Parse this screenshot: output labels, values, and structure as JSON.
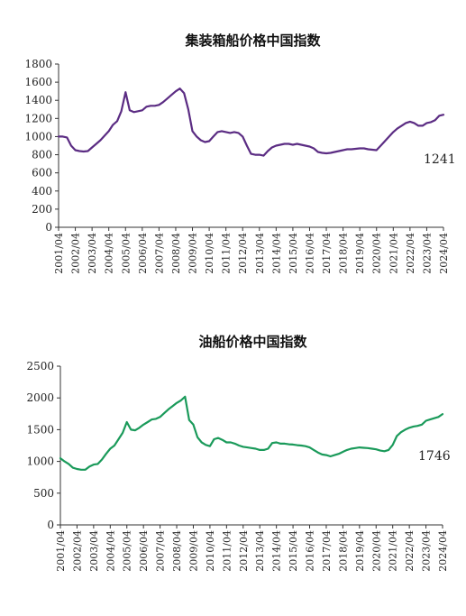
{
  "chart_data": [
    {
      "type": "line",
      "title": "集装箱船价格中国指数",
      "xlabel": "",
      "ylabel": "",
      "ylim": [
        0,
        1800
      ],
      "yticks": [
        0,
        200,
        400,
        600,
        800,
        1000,
        1200,
        1400,
        1600,
        1800
      ],
      "xticks": [
        "2001/04",
        "2002/04",
        "2003/04",
        "2004/04",
        "2005/04",
        "2006/04",
        "2007/04",
        "2008/04",
        "2009/04",
        "2010/04",
        "2011/04",
        "2012/04",
        "2013/04",
        "2014/04",
        "2015/04",
        "2016/04",
        "2017/04",
        "2018/04",
        "2019/04",
        "2020/04",
        "2021/04",
        "2022/04",
        "2023/04",
        "2024/04"
      ],
      "end_label": "1241",
      "color": "#5b2c83",
      "grid": false,
      "series": [
        {
          "x": [
            "2001/04",
            "2001/07",
            "2001/10",
            "2002/01",
            "2002/04",
            "2002/07",
            "2002/10",
            "2003/01",
            "2003/04",
            "2003/07",
            "2003/10",
            "2004/01",
            "2004/04",
            "2004/07",
            "2004/10",
            "2005/01",
            "2005/04",
            "2005/07",
            "2005/10",
            "2006/01",
            "2006/04",
            "2006/07",
            "2006/10",
            "2007/01",
            "2007/04",
            "2007/07",
            "2007/10",
            "2008/01",
            "2008/04",
            "2008/07",
            "2008/10",
            "2009/01",
            "2009/04",
            "2009/07",
            "2009/10",
            "2010/01",
            "2010/04",
            "2010/07",
            "2010/10",
            "2011/01",
            "2011/04",
            "2011/07",
            "2011/10",
            "2012/01",
            "2012/04",
            "2012/07",
            "2012/10",
            "2013/01",
            "2013/04",
            "2013/07",
            "2013/10",
            "2014/01",
            "2014/04",
            "2014/07",
            "2014/10",
            "2015/01",
            "2015/04",
            "2015/07",
            "2015/10",
            "2016/01",
            "2016/04",
            "2016/07",
            "2016/10",
            "2017/01",
            "2017/04",
            "2017/07",
            "2017/10",
            "2018/01",
            "2018/04",
            "2018/07",
            "2018/10",
            "2019/01",
            "2019/04",
            "2019/07",
            "2019/10",
            "2020/01",
            "2020/04",
            "2020/07",
            "2020/10",
            "2021/01",
            "2021/04",
            "2021/07",
            "2021/10",
            "2022/01",
            "2022/04",
            "2022/07",
            "2022/10",
            "2023/01",
            "2023/04",
            "2023/07",
            "2023/10",
            "2024/01",
            "2024/04"
          ],
          "values": [
            1000,
            1000,
            990,
            900,
            850,
            840,
            835,
            840,
            880,
            920,
            960,
            1010,
            1060,
            1130,
            1170,
            1280,
            1490,
            1290,
            1270,
            1280,
            1290,
            1330,
            1340,
            1340,
            1350,
            1380,
            1420,
            1460,
            1500,
            1530,
            1480,
            1300,
            1060,
            1000,
            960,
            940,
            950,
            1000,
            1050,
            1060,
            1050,
            1040,
            1050,
            1040,
            1000,
            900,
            810,
            800,
            800,
            790,
            840,
            880,
            900,
            910,
            920,
            920,
            910,
            920,
            910,
            900,
            890,
            870,
            830,
            820,
            815,
            820,
            830,
            840,
            850,
            860,
            860,
            865,
            870,
            870,
            860,
            855,
            850,
            900,
            950,
            1000,
            1050,
            1090,
            1120,
            1150,
            1165,
            1150,
            1120,
            1120,
            1150,
            1160,
            1180,
            1230,
            1241
          ]
        }
      ]
    },
    {
      "type": "line",
      "title": "油船价格中国指数",
      "xlabel": "",
      "ylabel": "",
      "ylim": [
        0,
        2500
      ],
      "yticks": [
        0,
        500,
        1000,
        1500,
        2000,
        2500
      ],
      "xticks": [
        "2001/04",
        "2002/04",
        "2003/04",
        "2004/04",
        "2005/04",
        "2006/04",
        "2007/04",
        "2008/04",
        "2009/04",
        "2010/04",
        "2011/04",
        "2012/04",
        "2013/04",
        "2014/04",
        "2015/04",
        "2016/04",
        "2017/04",
        "2018/04",
        "2019/04",
        "2020/04",
        "2021/04",
        "2022/04",
        "2023/04",
        "2024/04"
      ],
      "end_label": "1746",
      "color": "#1a9a5a",
      "grid": false,
      "series": [
        {
          "x": [
            "2001/04",
            "2001/07",
            "2001/10",
            "2002/01",
            "2002/04",
            "2002/07",
            "2002/10",
            "2003/01",
            "2003/04",
            "2003/07",
            "2003/10",
            "2004/01",
            "2004/04",
            "2004/07",
            "2004/10",
            "2005/01",
            "2005/04",
            "2005/07",
            "2005/10",
            "2006/01",
            "2006/04",
            "2006/07",
            "2006/10",
            "2007/01",
            "2007/04",
            "2007/07",
            "2007/10",
            "2008/01",
            "2008/04",
            "2008/07",
            "2008/10",
            "2009/01",
            "2009/04",
            "2009/07",
            "2009/10",
            "2010/01",
            "2010/04",
            "2010/07",
            "2010/10",
            "2011/01",
            "2011/04",
            "2011/07",
            "2011/10",
            "2012/01",
            "2012/04",
            "2012/07",
            "2012/10",
            "2013/01",
            "2013/04",
            "2013/07",
            "2013/10",
            "2014/01",
            "2014/04",
            "2014/07",
            "2014/10",
            "2015/01",
            "2015/04",
            "2015/07",
            "2015/10",
            "2016/01",
            "2016/04",
            "2016/07",
            "2016/10",
            "2017/01",
            "2017/04",
            "2017/07",
            "2017/10",
            "2018/01",
            "2018/04",
            "2018/07",
            "2018/10",
            "2019/01",
            "2019/04",
            "2019/07",
            "2019/10",
            "2020/01",
            "2020/04",
            "2020/07",
            "2020/10",
            "2021/01",
            "2021/04",
            "2021/07",
            "2021/10",
            "2022/01",
            "2022/04",
            "2022/07",
            "2022/10",
            "2023/01",
            "2023/04",
            "2023/07",
            "2023/10",
            "2024/01",
            "2024/04"
          ],
          "values": [
            1050,
            1000,
            960,
            900,
            880,
            870,
            870,
            920,
            950,
            960,
            1030,
            1120,
            1200,
            1250,
            1350,
            1450,
            1620,
            1500,
            1490,
            1530,
            1580,
            1620,
            1660,
            1670,
            1700,
            1760,
            1820,
            1870,
            1920,
            1960,
            2020,
            1650,
            1580,
            1380,
            1300,
            1260,
            1240,
            1350,
            1370,
            1340,
            1300,
            1300,
            1280,
            1250,
            1230,
            1220,
            1210,
            1200,
            1180,
            1180,
            1200,
            1290,
            1300,
            1280,
            1280,
            1270,
            1265,
            1255,
            1250,
            1240,
            1220,
            1180,
            1140,
            1110,
            1100,
            1080,
            1100,
            1120,
            1150,
            1180,
            1200,
            1210,
            1220,
            1215,
            1210,
            1200,
            1190,
            1170,
            1160,
            1180,
            1260,
            1400,
            1460,
            1500,
            1530,
            1550,
            1560,
            1580,
            1640,
            1660,
            1680,
            1700,
            1746
          ]
        }
      ]
    }
  ]
}
